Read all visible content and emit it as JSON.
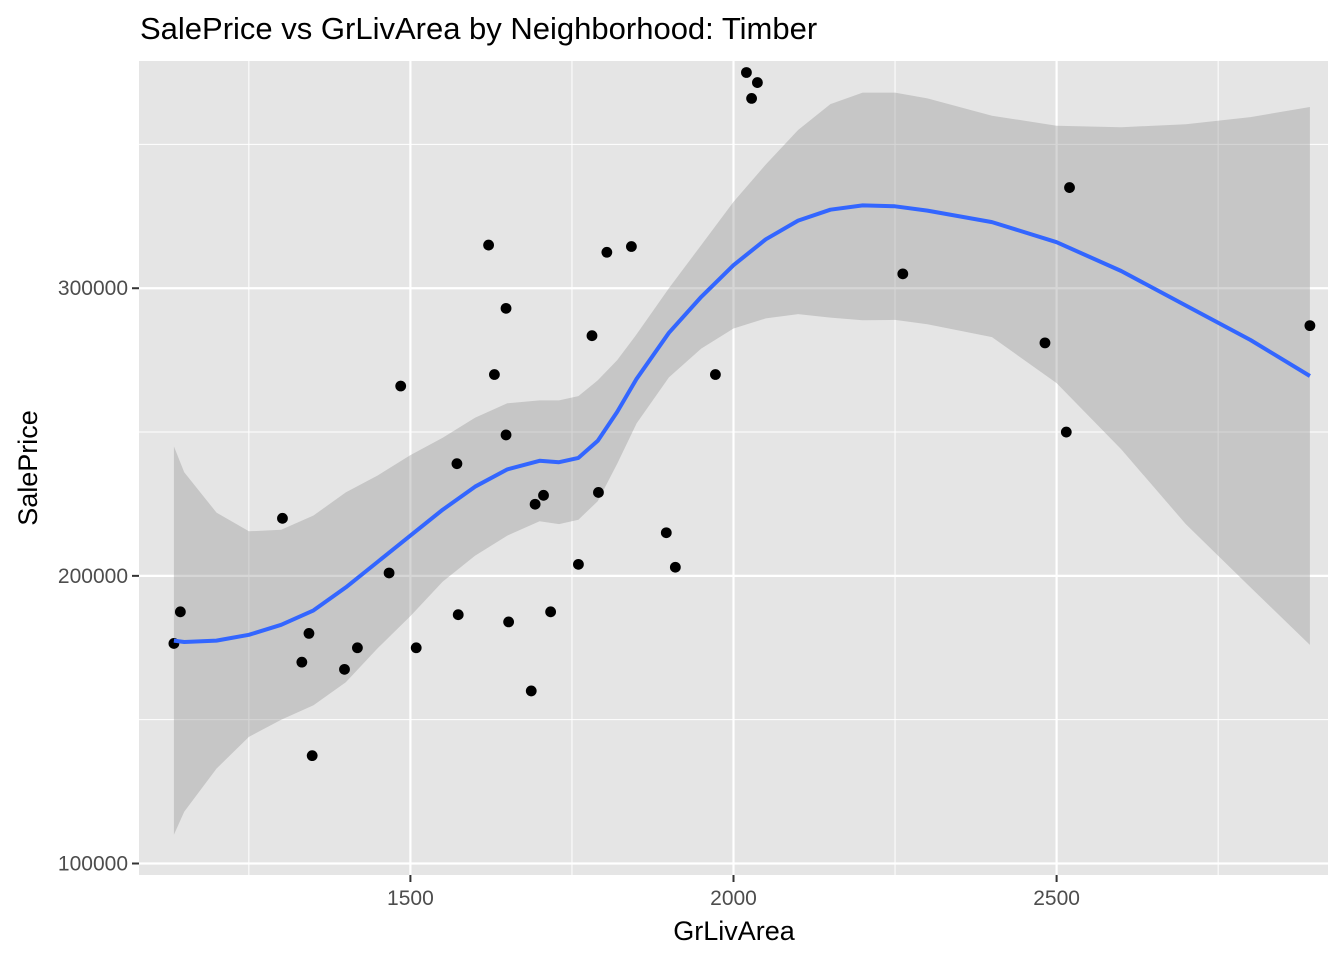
{
  "chart_data": {
    "type": "scatter",
    "title": "SalePrice vs GrLivArea by Neighborhood: Timber",
    "xlabel": "GrLivArea",
    "ylabel": "SalePrice",
    "xlim": [
      1080,
      2920
    ],
    "ylim": [
      96000,
      379000
    ],
    "x_ticks": [
      1500,
      2000,
      2500
    ],
    "x_tick_labels": [
      "1500",
      "2000",
      "2500"
    ],
    "x_minor_ticks": [
      1250,
      1750,
      2250,
      2750
    ],
    "y_ticks": [
      100000,
      200000,
      300000
    ],
    "y_tick_labels": [
      "100000",
      "200000",
      "300000"
    ],
    "y_minor_ticks": [
      150000,
      250000,
      350000
    ],
    "grid": true,
    "legend": "none",
    "colors": {
      "panel": "#e5e5e5",
      "grid": "#ffffff",
      "point": "#000000",
      "smooth_line": "#3366ff",
      "ribbon": "#999999"
    },
    "points": [
      {
        "x": 1134,
        "y": 176500
      },
      {
        "x": 1144,
        "y": 187500
      },
      {
        "x": 1302,
        "y": 220000
      },
      {
        "x": 1332,
        "y": 170000
      },
      {
        "x": 1343,
        "y": 180000
      },
      {
        "x": 1348,
        "y": 137500
      },
      {
        "x": 1398,
        "y": 167500
      },
      {
        "x": 1418,
        "y": 175000
      },
      {
        "x": 1467,
        "y": 201000
      },
      {
        "x": 1485,
        "y": 266000
      },
      {
        "x": 1509,
        "y": 175000
      },
      {
        "x": 1572,
        "y": 239000
      },
      {
        "x": 1574,
        "y": 186500
      },
      {
        "x": 1621,
        "y": 315000
      },
      {
        "x": 1630,
        "y": 270000
      },
      {
        "x": 1648,
        "y": 293000
      },
      {
        "x": 1648,
        "y": 249000
      },
      {
        "x": 1652,
        "y": 184000
      },
      {
        "x": 1687,
        "y": 160000
      },
      {
        "x": 1693,
        "y": 224900
      },
      {
        "x": 1706,
        "y": 228000
      },
      {
        "x": 1717,
        "y": 187500
      },
      {
        "x": 1760,
        "y": 204000
      },
      {
        "x": 1781,
        "y": 283500
      },
      {
        "x": 1791,
        "y": 229000
      },
      {
        "x": 1804,
        "y": 312500
      },
      {
        "x": 1842,
        "y": 314500
      },
      {
        "x": 1896,
        "y": 215000
      },
      {
        "x": 1910,
        "y": 203000
      },
      {
        "x": 1972,
        "y": 270000
      },
      {
        "x": 2020,
        "y": 375000
      },
      {
        "x": 2028,
        "y": 366000
      },
      {
        "x": 2037,
        "y": 371500
      },
      {
        "x": 2262,
        "y": 305000
      },
      {
        "x": 2482,
        "y": 281000
      },
      {
        "x": 2515,
        "y": 250000
      },
      {
        "x": 2520,
        "y": 335000
      },
      {
        "x": 2892,
        "y": 287000
      }
    ],
    "smooth": {
      "x": [
        1134,
        1150,
        1200,
        1250,
        1300,
        1350,
        1400,
        1450,
        1500,
        1550,
        1600,
        1650,
        1700,
        1730,
        1760,
        1790,
        1820,
        1850,
        1900,
        1950,
        2000,
        2050,
        2100,
        2150,
        2200,
        2250,
        2300,
        2400,
        2500,
        2600,
        2700,
        2800,
        2892
      ],
      "y": [
        177500,
        177000,
        177500,
        179500,
        183000,
        188000,
        196000,
        205000,
        214000,
        223000,
        231000,
        237000,
        240000,
        239500,
        241000,
        247000,
        257000,
        268500,
        284500,
        297000,
        308000,
        317000,
        323500,
        327300,
        328800,
        328500,
        327000,
        323000,
        316000,
        306000,
        294000,
        282000,
        269500
      ],
      "lower": [
        110000,
        118000,
        133000,
        144000,
        150000,
        155000,
        163000,
        175000,
        186000,
        198000,
        207000,
        214000,
        219000,
        218000,
        219500,
        226000,
        239000,
        253000,
        269000,
        279000,
        286000,
        289500,
        291000,
        289800,
        288900,
        289000,
        287500,
        283000,
        267000,
        244000,
        218000,
        196000,
        176000
      ],
      "upper": [
        245000,
        236000,
        222000,
        215500,
        216000,
        221000,
        229000,
        235000,
        242000,
        248000,
        255000,
        260000,
        261000,
        261000,
        262500,
        268000,
        275000,
        284000,
        300000,
        315000,
        330000,
        343000,
        355000,
        364000,
        368000,
        368000,
        366000,
        360000,
        356500,
        356000,
        357000,
        359500,
        363000
      ]
    }
  }
}
